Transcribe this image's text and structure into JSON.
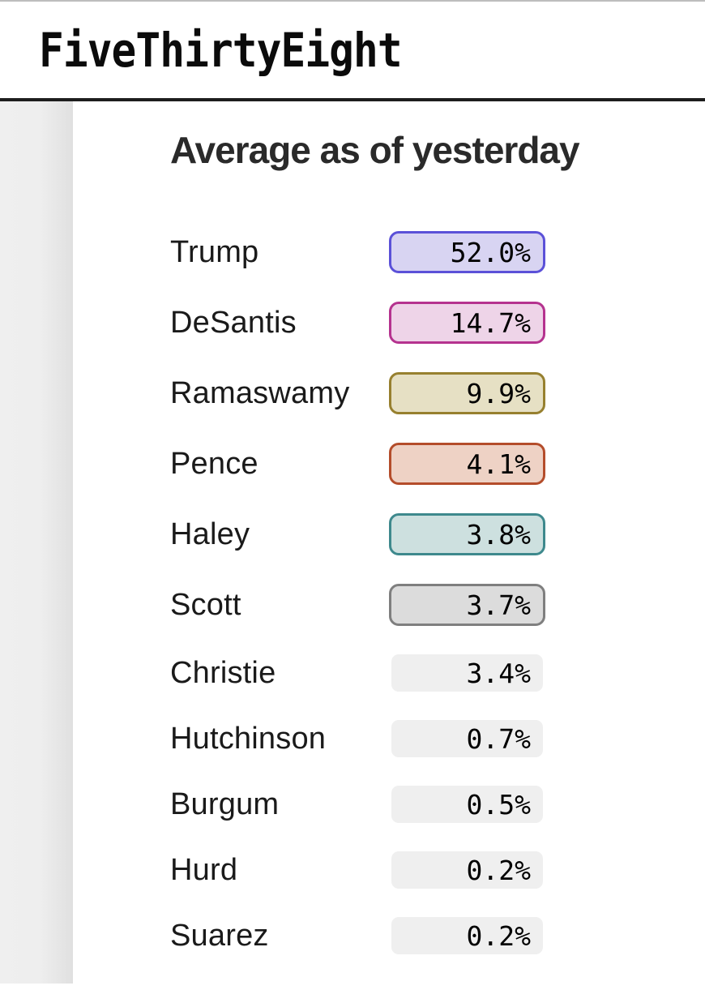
{
  "header": {
    "logo": "FiveThirtyEight"
  },
  "widget": {
    "title": "Average as of yesterday",
    "candidates": [
      {
        "name": "Trump",
        "value": "52.0%",
        "border_color": "#5b51d8",
        "fill_color": "#d8d4f2",
        "highlighted": true
      },
      {
        "name": "DeSantis",
        "value": "14.7%",
        "border_color": "#b5338f",
        "fill_color": "#eed4e8",
        "highlighted": true
      },
      {
        "name": "Ramaswamy",
        "value": "9.9%",
        "border_color": "#97802f",
        "fill_color": "#e6e0c4",
        "highlighted": true
      },
      {
        "name": "Pence",
        "value": "4.1%",
        "border_color": "#b44d2b",
        "fill_color": "#eed2c5",
        "highlighted": true
      },
      {
        "name": "Haley",
        "value": "3.8%",
        "border_color": "#3e898d",
        "fill_color": "#cde0df",
        "highlighted": true
      },
      {
        "name": "Scott",
        "value": "3.7%",
        "border_color": "#7f7f7f",
        "fill_color": "#dcdcdc",
        "highlighted": true
      },
      {
        "name": "Christie",
        "value": "3.4%",
        "border_color": null,
        "fill_color": "#efefef",
        "highlighted": false
      },
      {
        "name": "Hutchinson",
        "value": "0.7%",
        "border_color": null,
        "fill_color": "#efefef",
        "highlighted": false
      },
      {
        "name": "Burgum",
        "value": "0.5%",
        "border_color": null,
        "fill_color": "#efefef",
        "highlighted": false
      },
      {
        "name": "Hurd",
        "value": "0.2%",
        "border_color": null,
        "fill_color": "#efefef",
        "highlighted": false
      },
      {
        "name": "Suarez",
        "value": "0.2%",
        "border_color": null,
        "fill_color": "#efefef",
        "highlighted": false
      }
    ]
  },
  "chart_data": {
    "type": "table",
    "title": "Average as of yesterday",
    "categories": [
      "Trump",
      "DeSantis",
      "Ramaswamy",
      "Pence",
      "Haley",
      "Scott",
      "Christie",
      "Hutchinson",
      "Burgum",
      "Hurd",
      "Suarez"
    ],
    "values": [
      52.0,
      14.7,
      9.9,
      4.1,
      3.8,
      3.7,
      3.4,
      0.7,
      0.5,
      0.2,
      0.2
    ],
    "unit": "%"
  }
}
